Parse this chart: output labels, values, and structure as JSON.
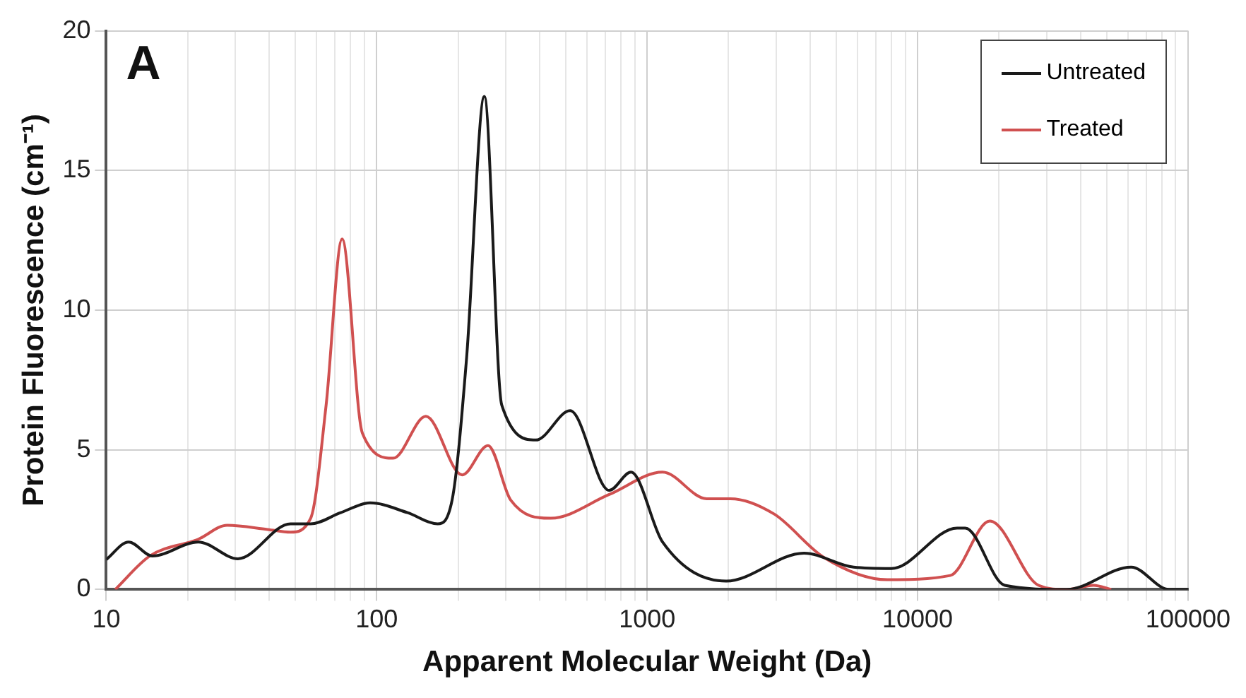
{
  "chart_data": {
    "type": "line",
    "xlabel": "Apparent Molecular Weight (Da)",
    "ylabel": "Protein Fluorescence (cm⁻¹)",
    "annotations": [
      "A"
    ],
    "log": "x",
    "grid": true,
    "legend": "top right",
    "marker": "none",
    "line_style": "solid",
    "xlim": [
      10,
      100000
    ],
    "ylim": [
      0,
      20
    ],
    "yticks": [
      0,
      5,
      10,
      15,
      20
    ],
    "xticks": [
      10,
      {
        "value": 20,
        "label": null
      },
      {
        "value": 30,
        "label": null
      },
      {
        "value": 40,
        "label": null
      },
      {
        "value": 50,
        "label": null
      },
      {
        "value": 60,
        "label": null
      },
      {
        "value": 70,
        "label": null
      },
      {
        "value": 80,
        "label": null
      },
      {
        "value": 90,
        "label": null
      },
      100,
      {
        "value": 200,
        "label": null
      },
      {
        "value": 300,
        "label": null
      },
      {
        "value": 400,
        "label": null
      },
      {
        "value": 500,
        "label": null
      },
      {
        "value": 600,
        "label": null
      },
      {
        "value": 700,
        "label": null
      },
      {
        "value": 800,
        "label": null
      },
      {
        "value": 900,
        "label": null
      },
      1000,
      {
        "value": 2000,
        "label": null
      },
      {
        "value": 3000,
        "label": null
      },
      {
        "value": 4000,
        "label": null
      },
      {
        "value": 5000,
        "label": null
      },
      {
        "value": 6000,
        "label": null
      },
      {
        "value": 7000,
        "label": null
      },
      {
        "value": 8000,
        "label": null
      },
      {
        "value": 9000,
        "label": null
      },
      10000,
      {
        "value": 20000,
        "label": null
      },
      {
        "value": 30000,
        "label": null
      },
      {
        "value": 40000,
        "label": null
      },
      {
        "value": 50000,
        "label": null
      },
      {
        "value": 60000,
        "label": null
      },
      {
        "value": 70000,
        "label": null
      },
      {
        "value": 80000,
        "label": null
      },
      {
        "value": 90000,
        "label": null
      },
      100000
    ],
    "series": [
      {
        "name": "Untreated",
        "color": "#1a1a1a",
        "x": [
          10,
          12.1,
          14.8,
          21.9,
          30.7,
          48,
          57,
          73.6,
          94.5,
          130,
          168,
          190,
          215,
          250,
          290,
          388,
          519,
          724,
          871,
          1140,
          1960,
          3800,
          5800,
          8000,
          14000,
          15000,
          21000,
          35600,
          61600,
          85000,
          100000
        ],
        "values": [
          1.07,
          1.7,
          1.2,
          1.7,
          1.1,
          2.35,
          2.35,
          2.75,
          3.1,
          2.75,
          2.35,
          3.2,
          8.3,
          17.65,
          6.6,
          5.35,
          6.4,
          3.55,
          4.2,
          1.7,
          0.3,
          1.3,
          0.8,
          0.75,
          2.2,
          2.2,
          0.15,
          0,
          0.8,
          0,
          0
        ]
      },
      {
        "name": "Treated",
        "color": "#d05050",
        "x": [
          10.8,
          14.5,
          21.9,
          28,
          39.5,
          48,
          57,
          65,
          74.5,
          88.5,
          115,
          152,
          207,
          258,
          313,
          440,
          724,
          1140,
          1660,
          2030,
          2950,
          4500,
          7730,
          13200,
          18500,
          28000,
          35600,
          44700,
          52000
        ],
        "values": [
          0,
          1.2,
          1.8,
          2.3,
          2.15,
          2.05,
          2.55,
          6.6,
          12.55,
          5.6,
          4.7,
          6.2,
          4.1,
          5.15,
          3.2,
          2.55,
          3.4,
          4.2,
          3.25,
          3.25,
          2.7,
          1.15,
          0.35,
          0.5,
          2.45,
          0.15,
          0,
          0.15,
          0
        ]
      }
    ]
  }
}
